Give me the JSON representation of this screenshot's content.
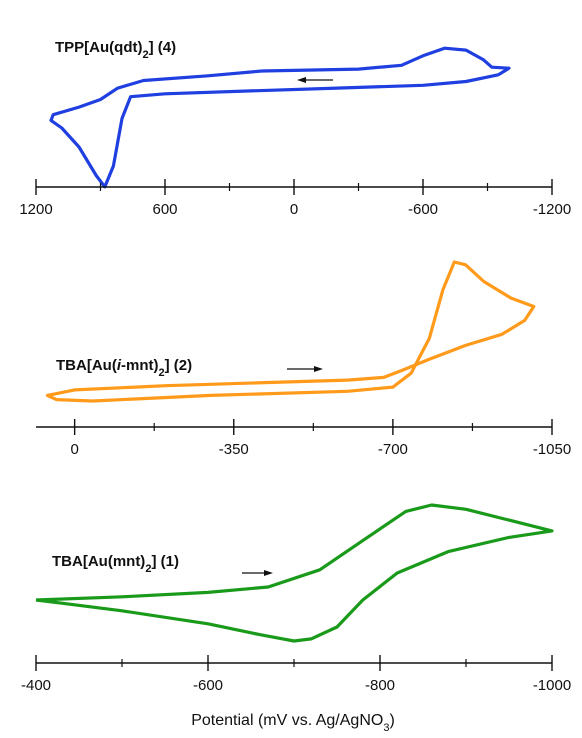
{
  "chart_data": [
    {
      "type": "line",
      "label": {
        "prefix": "TPP[Au(qdt)",
        "sub": "2",
        "suffix": "] (4)"
      },
      "color": "#1f3fe0",
      "scan_direction": "toward positive potential",
      "x_axis_ticks": [
        1200,
        600,
        0,
        -600,
        -1200
      ],
      "xlim": [
        1200,
        -1200
      ],
      "points": [
        [
          150,
          0.6
        ],
        [
          -300,
          0.62
        ],
        [
          -500,
          0.66
        ],
        [
          -600,
          0.76
        ],
        [
          -700,
          0.84
        ],
        [
          -800,
          0.82
        ],
        [
          -880,
          0.72
        ],
        [
          -920,
          0.64
        ],
        [
          -1000,
          0.63
        ],
        [
          -950,
          0.56
        ],
        [
          -800,
          0.49
        ],
        [
          -600,
          0.45
        ],
        [
          -200,
          0.42
        ],
        [
          200,
          0.39
        ],
        [
          600,
          0.36
        ],
        [
          760,
          0.33
        ],
        [
          800,
          0.1
        ],
        [
          840,
          -0.4
        ],
        [
          880,
          -0.62
        ],
        [
          920,
          -0.5
        ],
        [
          1000,
          -0.2
        ],
        [
          1080,
          0.0
        ],
        [
          1130,
          0.08
        ],
        [
          1120,
          0.14
        ],
        [
          1000,
          0.22
        ],
        [
          900,
          0.3
        ],
        [
          820,
          0.42
        ],
        [
          700,
          0.5
        ],
        [
          400,
          0.55
        ],
        [
          150,
          0.6
        ]
      ]
    },
    {
      "type": "line",
      "label": {
        "prefix": "TBA[Au(",
        "italic": "i",
        "middle": "-mnt)",
        "sub": "2",
        "suffix": "] (2)"
      },
      "color": "#ff9a1a",
      "scan_direction": "toward negative potential",
      "x_axis_ticks": [
        0,
        -350,
        -700,
        -1050
      ],
      "xlim": [
        85,
        -1050
      ],
      "points": [
        [
          -40,
          0.0
        ],
        [
          -300,
          0.04
        ],
        [
          -600,
          0.07
        ],
        [
          -700,
          0.1
        ],
        [
          -740,
          0.2
        ],
        [
          -780,
          0.45
        ],
        [
          -810,
          0.8
        ],
        [
          -835,
          1.0
        ],
        [
          -860,
          0.98
        ],
        [
          -900,
          0.86
        ],
        [
          -960,
          0.74
        ],
        [
          -1010,
          0.68
        ],
        [
          -990,
          0.58
        ],
        [
          -940,
          0.48
        ],
        [
          -860,
          0.4
        ],
        [
          -780,
          0.3
        ],
        [
          -720,
          0.22
        ],
        [
          -680,
          0.17
        ],
        [
          -600,
          0.15
        ],
        [
          -400,
          0.13
        ],
        [
          -200,
          0.11
        ],
        [
          0,
          0.08
        ],
        [
          60,
          0.04
        ],
        [
          40,
          0.01
        ],
        [
          -40,
          0.0
        ]
      ]
    },
    {
      "type": "line",
      "label": {
        "prefix": "TBA[Au(mnt)",
        "sub": "2",
        "suffix": "] (1)"
      },
      "color": "#1a9a1a",
      "scan_direction": "toward negative potential",
      "x_axis_ticks": [
        -400,
        -600,
        -800,
        -1000
      ],
      "xlim": [
        -400,
        -1000
      ],
      "points": [
        [
          -400,
          0.0
        ],
        [
          -500,
          0.03
        ],
        [
          -600,
          0.07
        ],
        [
          -670,
          0.12
        ],
        [
          -730,
          0.28
        ],
        [
          -780,
          0.55
        ],
        [
          -830,
          0.82
        ],
        [
          -860,
          0.88
        ],
        [
          -900,
          0.84
        ],
        [
          -950,
          0.74
        ],
        [
          -1000,
          0.64
        ],
        [
          -950,
          0.58
        ],
        [
          -880,
          0.45
        ],
        [
          -820,
          0.25
        ],
        [
          -780,
          0.0
        ],
        [
          -750,
          -0.25
        ],
        [
          -720,
          -0.36
        ],
        [
          -700,
          -0.38
        ],
        [
          -660,
          -0.32
        ],
        [
          -600,
          -0.22
        ],
        [
          -500,
          -0.1
        ],
        [
          -430,
          -0.03
        ],
        [
          -400,
          0.0
        ]
      ]
    }
  ],
  "x_axis_title": {
    "prefix": "Potential (mV vs. Ag/AgNO",
    "sub": "3",
    "suffix": ")"
  }
}
